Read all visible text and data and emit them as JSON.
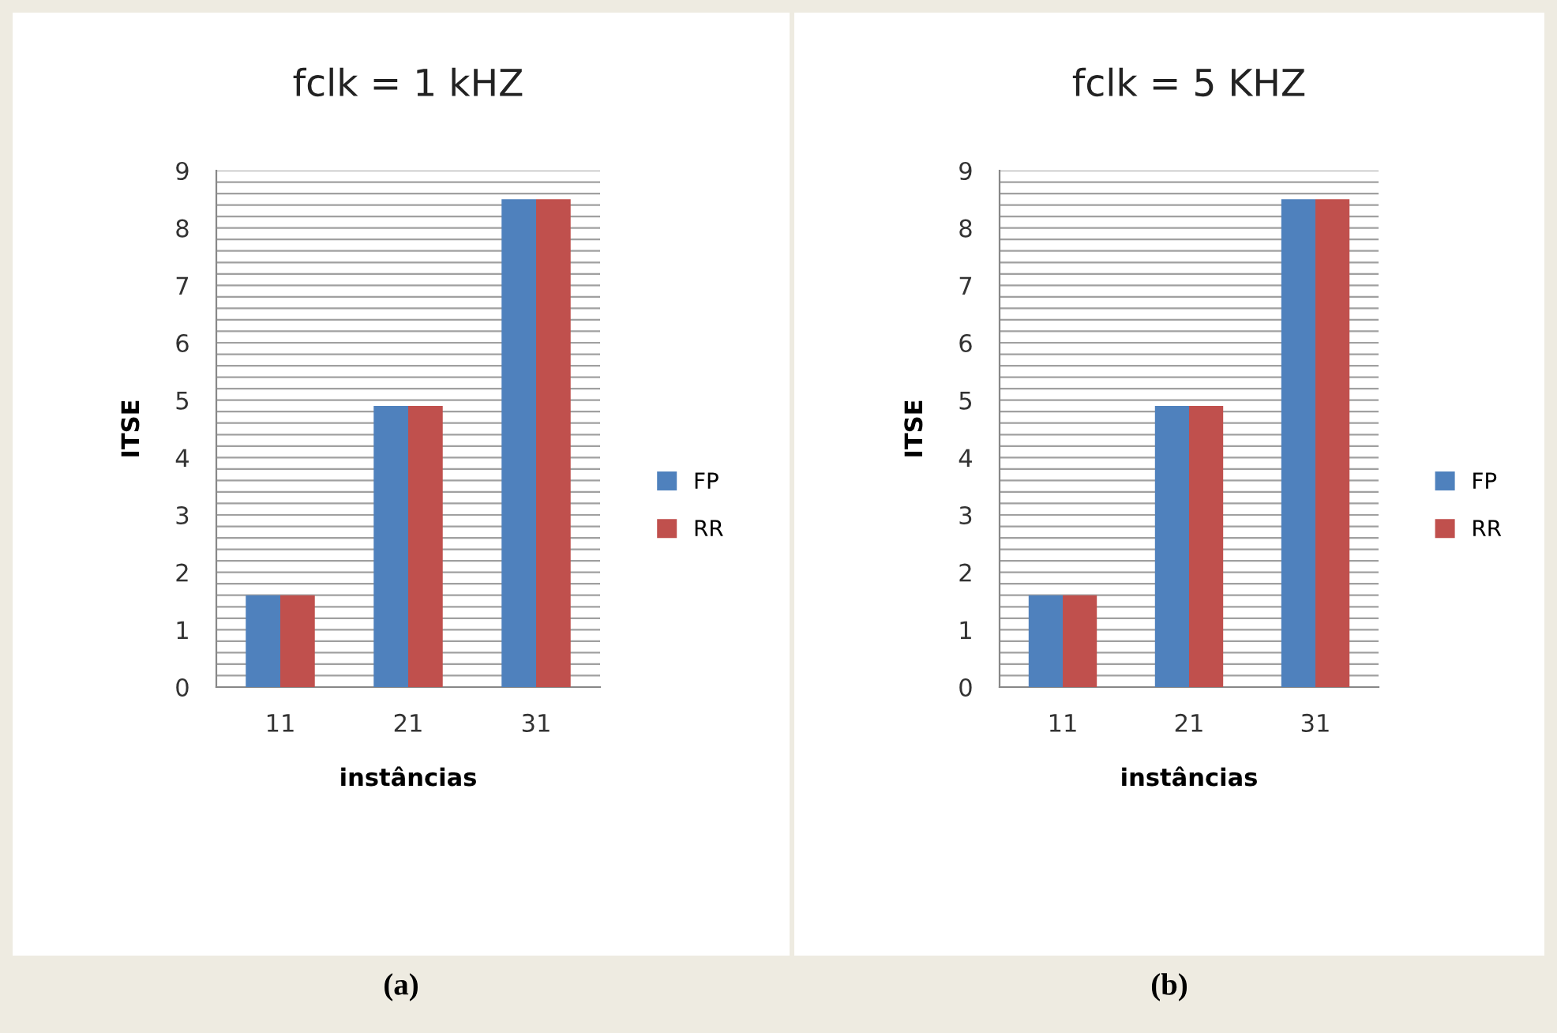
{
  "chart_data": [
    {
      "type": "bar",
      "title": "fclk = 1 kHZ",
      "xlabel": "instâncias",
      "ylabel": "ITSE",
      "categories": [
        "11",
        "21",
        "31"
      ],
      "series": [
        {
          "name": "FP",
          "color": "#4f81bd",
          "values": [
            1.6,
            4.9,
            8.5
          ]
        },
        {
          "name": "RR",
          "color": "#c0504d",
          "values": [
            1.6,
            4.9,
            8.5
          ]
        }
      ],
      "ylim": [
        0,
        9
      ],
      "yticks": [
        0,
        1,
        2,
        3,
        4,
        5,
        6,
        7,
        8,
        9
      ],
      "grid": "y",
      "legend": "right",
      "annotations": [
        "(a)"
      ]
    },
    {
      "type": "bar",
      "title": "fclk = 5 KHZ",
      "xlabel": "instâncias",
      "ylabel": "ITSE",
      "categories": [
        "11",
        "21",
        "31"
      ],
      "series": [
        {
          "name": "FP",
          "color": "#4f81bd",
          "values": [
            1.6,
            4.9,
            8.5
          ]
        },
        {
          "name": "RR",
          "color": "#c0504d",
          "values": [
            1.6,
            4.9,
            8.5
          ]
        }
      ],
      "ylim": [
        0,
        9
      ],
      "yticks": [
        0,
        1,
        2,
        3,
        4,
        5,
        6,
        7,
        8,
        9
      ],
      "grid": "y",
      "legend": "right",
      "annotations": [
        "(b)"
      ]
    }
  ]
}
